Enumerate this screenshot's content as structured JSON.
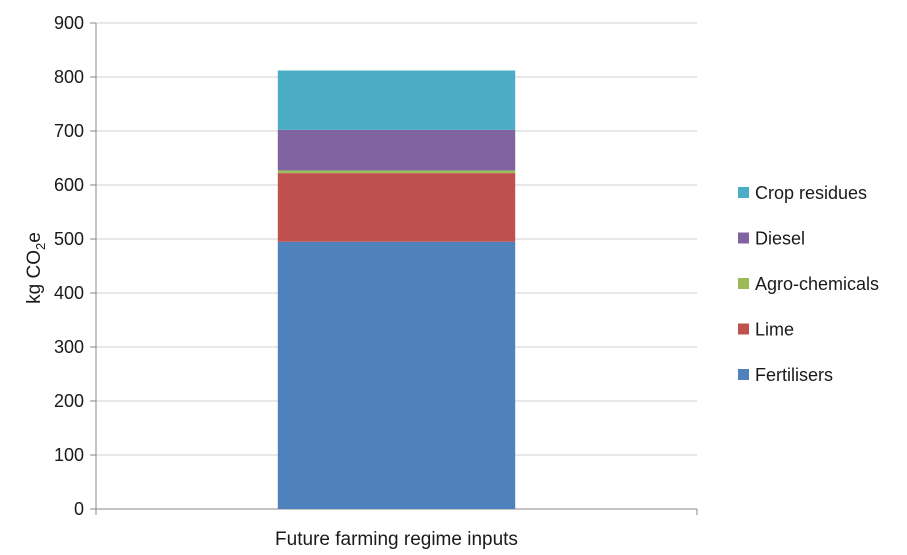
{
  "chart_data": {
    "type": "bar",
    "stacked": true,
    "categories": [
      "Future farming regime inputs"
    ],
    "series": [
      {
        "name": "Fertilisers",
        "values": [
          495
        ],
        "color": "#4F81BD"
      },
      {
        "name": "Lime",
        "values": [
          127
        ],
        "color": "#C0504D"
      },
      {
        "name": "Agro-chemicals",
        "values": [
          5
        ],
        "color": "#9BBB59"
      },
      {
        "name": "Diesel",
        "values": [
          75
        ],
        "color": "#8064A2"
      },
      {
        "name": "Crop residues",
        "values": [
          110
        ],
        "color": "#4BACC6"
      }
    ],
    "ylabel": {
      "main": "kg CO",
      "sub": "2",
      "tail": "e"
    },
    "ylim": [
      0,
      900
    ],
    "yticks": [
      0,
      100,
      200,
      300,
      400,
      500,
      600,
      700,
      800,
      900
    ],
    "grid": true,
    "legend": {
      "position": "right",
      "order": "reverse"
    }
  }
}
